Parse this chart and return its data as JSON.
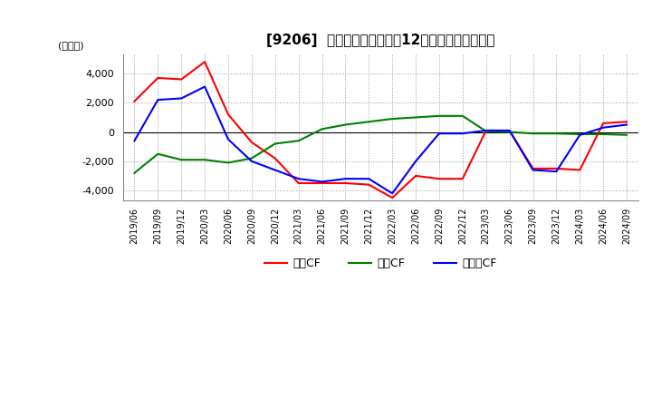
{
  "title": "[9206]  キャッシュフローの12か月移動合計の推移",
  "ylabel": "(百万円)",
  "ylim": [
    -4700,
    5300
  ],
  "yticks": [
    -4000,
    -2000,
    0,
    2000,
    4000
  ],
  "legend_labels": [
    "営業CF",
    "投資CF",
    "フリーCF"
  ],
  "line_colors": [
    "#ff0000",
    "#008000",
    "#0000ff"
  ],
  "background_color": "#ffffff",
  "dates": [
    "2019/06",
    "2019/09",
    "2019/12",
    "2020/03",
    "2020/06",
    "2020/09",
    "2020/12",
    "2021/03",
    "2021/06",
    "2021/09",
    "2021/12",
    "2022/03",
    "2022/06",
    "2022/09",
    "2022/12",
    "2023/03",
    "2023/06",
    "2023/09",
    "2023/12",
    "2024/03",
    "2024/06",
    "2024/09"
  ],
  "operating_cf": [
    2100,
    3700,
    3600,
    4800,
    1200,
    -700,
    -1800,
    -3500,
    -3500,
    -3500,
    -3600,
    -4500,
    -3000,
    -3200,
    -3200,
    100,
    100,
    -2500,
    -2500,
    -2600,
    600,
    700
  ],
  "investing_cf": [
    -2800,
    -1500,
    -1900,
    -1900,
    -2100,
    -1800,
    -800,
    -600,
    200,
    500,
    700,
    900,
    1000,
    1100,
    1100,
    50,
    0,
    -100,
    -100,
    -150,
    -150,
    -200
  ],
  "free_cf": [
    -600,
    2200,
    2300,
    3100,
    -500,
    -2000,
    -2600,
    -3200,
    -3400,
    -3200,
    -3200,
    -4200,
    -2000,
    -100,
    -100,
    100,
    100,
    -2600,
    -2700,
    -200,
    300,
    500
  ]
}
